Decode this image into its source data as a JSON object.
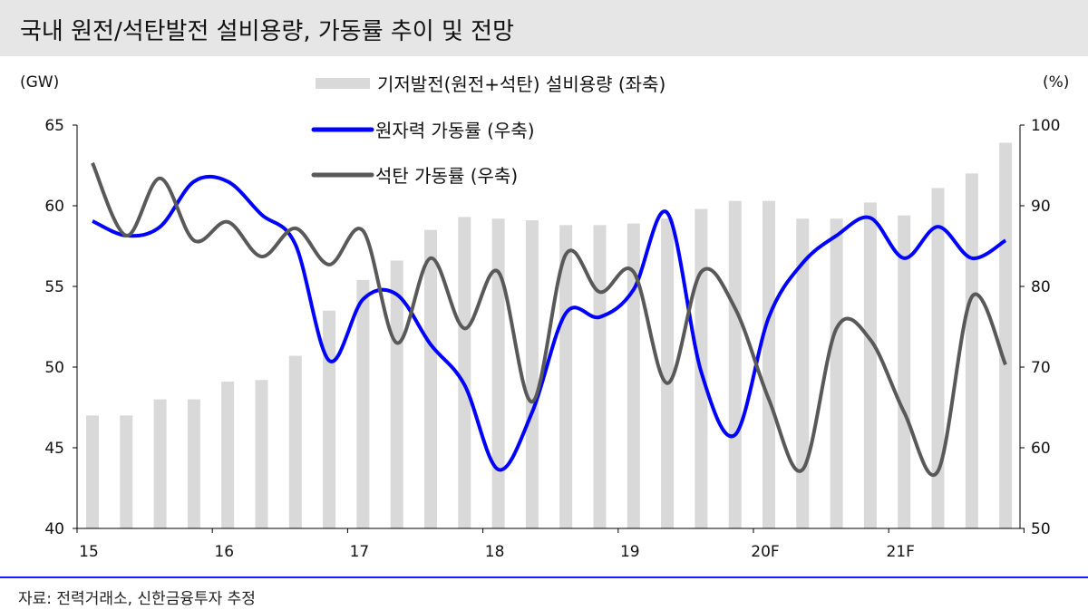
{
  "title": "국내 원전/석탄발전 설비용량, 가동률 추이 및 전망",
  "source": "자료: 전력거래소, 신한금융투자 추정",
  "chart_data": {
    "type": "bar+line",
    "left_unit": "(GW)",
    "right_unit": "(%)",
    "left_ylim": [
      40,
      65
    ],
    "left_ticks": [
      "40",
      "45",
      "50",
      "55",
      "60",
      "65"
    ],
    "right_ylim": [
      50,
      100
    ],
    "right_ticks": [
      "50",
      "60",
      "70",
      "80",
      "90",
      "100"
    ],
    "x_tick_labels": [
      "15",
      "16",
      "17",
      "18",
      "19",
      "20F",
      "21F"
    ],
    "quarters_per_year": 4,
    "series": [
      {
        "name": "기저발전(원전+석탄) 설비용량 (좌축)",
        "type": "bar",
        "axis": "left",
        "color": "#d9d9d9",
        "values": [
          47,
          47,
          48,
          48,
          49.1,
          49.2,
          50.7,
          53.5,
          55.4,
          56.6,
          58.5,
          59.3,
          59.2,
          59.1,
          58.8,
          58.8,
          58.9,
          59.2,
          59.8,
          60.3,
          60.3,
          59.2,
          59.2,
          60.2,
          59.4,
          61.1,
          62,
          63.9
        ]
      },
      {
        "name": "원자력 가동률 (우축)",
        "type": "line",
        "axis": "right",
        "color": "#0000ff",
        "values": [
          88.1,
          86.3,
          87.4,
          93,
          93,
          88.9,
          85.2,
          70.8,
          78.4,
          79,
          72.8,
          67.8,
          57.3,
          64.4,
          76.7,
          76.2,
          79.6,
          89.1,
          69.4,
          61.6,
          76.2,
          82.9,
          86.3,
          88.5,
          83.5,
          87.4,
          83.5,
          85.7
        ]
      },
      {
        "name": "석탄 가동률 (우축)",
        "type": "line",
        "axis": "right",
        "color": "#595959",
        "values": [
          95.3,
          86.3,
          93.4,
          85.7,
          88,
          83.7,
          87.2,
          82.7,
          86.9,
          73,
          83.5,
          74.8,
          81.8,
          65.7,
          84,
          79.3,
          81.8,
          68,
          81.8,
          77.3,
          66,
          57.3,
          74.8,
          73.4,
          64.4,
          57.1,
          78.7,
          70.3
        ]
      }
    ]
  }
}
